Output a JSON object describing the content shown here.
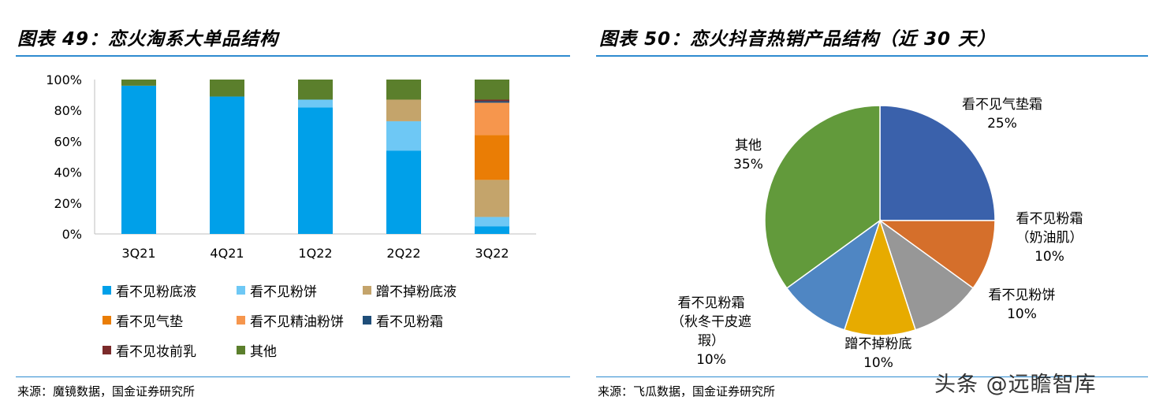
{
  "left_panel": {
    "title": "图表 49：恋火淘系大单品结构",
    "source": "来源：魔镜数据，国金证券研究所"
  },
  "right_panel": {
    "title": "图表 50：恋火抖音热销产品结构（近 30 天）",
    "source": "来源：飞瓜数据，国金证券研究所"
  },
  "watermark": "头条 @远瞻智库",
  "chart_data": [
    {
      "type": "bar",
      "stacked": true,
      "categories": [
        "3Q21",
        "4Q21",
        "1Q22",
        "2Q22",
        "3Q22"
      ],
      "ylim": [
        0,
        100
      ],
      "yticks": [
        "0%",
        "20%",
        "40%",
        "60%",
        "80%",
        "100%"
      ],
      "legend_position": "bottom",
      "series": [
        {
          "name": "看不见粉底液",
          "color": "#00a0e9",
          "values": [
            96,
            89,
            82,
            54,
            5
          ]
        },
        {
          "name": "看不见粉饼",
          "color": "#6ec8f5",
          "values": [
            0,
            0,
            5,
            19,
            6
          ]
        },
        {
          "name": "蹭不掉粉底液",
          "color": "#c4a46b",
          "values": [
            0,
            0,
            0,
            14,
            24
          ]
        },
        {
          "name": "看不见气垫",
          "color": "#ea7d05",
          "values": [
            0,
            0,
            0,
            0,
            29
          ]
        },
        {
          "name": "看不见精油粉饼",
          "color": "#f6964d",
          "values": [
            0,
            0,
            0,
            0,
            21
          ]
        },
        {
          "name": "看不见粉霜",
          "color": "#1f4e79",
          "values": [
            0,
            0,
            0,
            0,
            1
          ]
        },
        {
          "name": "看不见妆前乳",
          "color": "#7b2a2a",
          "values": [
            0,
            0,
            0,
            0,
            1
          ]
        },
        {
          "name": "其他",
          "color": "#5b7f2c",
          "values": [
            4,
            11,
            13,
            13,
            13
          ]
        }
      ]
    },
    {
      "type": "pie",
      "slices": [
        {
          "label": "看不见气垫霜",
          "value": 25,
          "display": "25%",
          "color": "#3a61ab"
        },
        {
          "label": "看不见粉霜（奶油肌）",
          "label_lines": [
            "看不见粉霜",
            "（奶油肌）"
          ],
          "value": 10,
          "display": "10%",
          "color": "#d56f2b"
        },
        {
          "label": "看不见粉饼",
          "value": 10,
          "display": "10%",
          "color": "#979797"
        },
        {
          "label": "蹭不掉粉底",
          "value": 10,
          "display": "10%",
          "color": "#e7ab00"
        },
        {
          "label": "看不见粉霜（秋冬干皮遮瑕）",
          "label_lines": [
            "看不见粉霜",
            "（秋冬干皮遮",
            "瑕）"
          ],
          "value": 10,
          "display": "10%",
          "color": "#4f86c3"
        },
        {
          "label": "其他",
          "value": 35,
          "display": "35%",
          "color": "#629a3b"
        }
      ]
    }
  ]
}
